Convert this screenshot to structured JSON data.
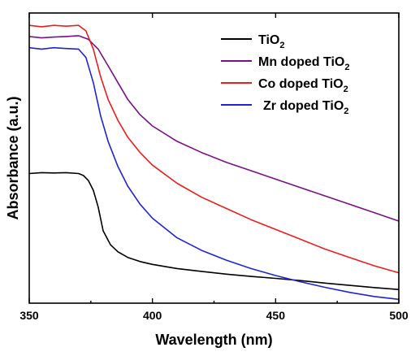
{
  "chart_data": {
    "type": "line",
    "xlabel": "Wavelength (nm)",
    "ylabel": "Absorbance (a.u.)",
    "xlim": [
      350,
      500
    ],
    "ylim": [
      0,
      1
    ],
    "xticks": [
      350,
      400,
      450,
      500
    ],
    "yticks_shown": false,
    "legend_position": "top-right",
    "series": [
      {
        "name": "TiO",
        "subscript": "2",
        "color": "#000000",
        "x": [
          350,
          355,
          360,
          365,
          370,
          372,
          374,
          376,
          378,
          380,
          383,
          386,
          390,
          395,
          400,
          410,
          420,
          430,
          440,
          450,
          460,
          470,
          480,
          490,
          500
        ],
        "y": [
          0.455,
          0.458,
          0.457,
          0.458,
          0.455,
          0.448,
          0.43,
          0.395,
          0.335,
          0.25,
          0.2,
          0.175,
          0.155,
          0.14,
          0.13,
          0.115,
          0.105,
          0.095,
          0.087,
          0.08,
          0.072,
          0.063,
          0.055,
          0.047,
          0.04
        ]
      },
      {
        "name": "Mn doped TiO",
        "subscript": "2",
        "color": "#7b0f86",
        "x": [
          350,
          355,
          360,
          365,
          370,
          374,
          378,
          382,
          386,
          390,
          395,
          400,
          410,
          420,
          430,
          440,
          450,
          460,
          470,
          480,
          490,
          500
        ],
        "y": [
          0.945,
          0.94,
          0.943,
          0.945,
          0.948,
          0.935,
          0.9,
          0.84,
          0.78,
          0.72,
          0.665,
          0.625,
          0.57,
          0.53,
          0.495,
          0.465,
          0.435,
          0.405,
          0.375,
          0.345,
          0.315,
          0.285
        ]
      },
      {
        "name": "Co doped TiO",
        "subscript": "2",
        "color": "#ee1c1c",
        "x": [
          350,
          355,
          360,
          365,
          370,
          373,
          376,
          379,
          382,
          386,
          390,
          395,
          400,
          410,
          420,
          430,
          440,
          450,
          460,
          470,
          480,
          490,
          500
        ],
        "y": [
          0.985,
          0.98,
          0.985,
          0.982,
          0.985,
          0.965,
          0.9,
          0.8,
          0.72,
          0.645,
          0.585,
          0.53,
          0.485,
          0.42,
          0.37,
          0.33,
          0.29,
          0.255,
          0.22,
          0.185,
          0.155,
          0.125,
          0.1
        ]
      },
      {
        "name": "Zr doped TiO",
        "subscript": "2",
        "color": "#1f24d4",
        "x": [
          350,
          355,
          360,
          365,
          370,
          373,
          376,
          379,
          382,
          386,
          390,
          395,
          400,
          410,
          420,
          430,
          440,
          450,
          460,
          470,
          480,
          490,
          500
        ],
        "y": [
          0.905,
          0.9,
          0.905,
          0.902,
          0.9,
          0.87,
          0.78,
          0.66,
          0.57,
          0.48,
          0.41,
          0.345,
          0.295,
          0.225,
          0.18,
          0.145,
          0.115,
          0.09,
          0.068,
          0.048,
          0.03,
          0.015,
          0.005
        ]
      }
    ]
  }
}
